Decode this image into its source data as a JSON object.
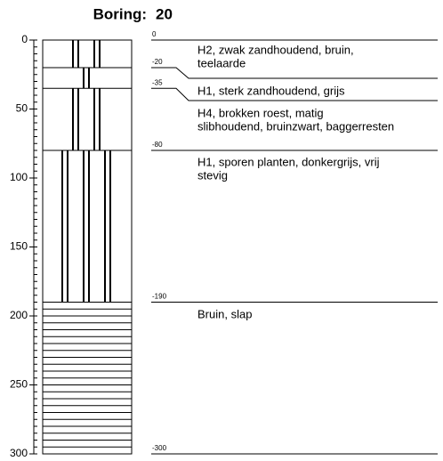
{
  "header": {
    "label": "Boring:",
    "id": "20"
  },
  "axis": {
    "ticks": [
      0,
      50,
      100,
      150,
      200,
      250,
      300
    ],
    "minor_step": 5,
    "range": [
      0,
      300
    ]
  },
  "boundaries": [
    0,
    -20,
    -35,
    -80,
    -190,
    -300
  ],
  "layers": [
    {
      "top": 0,
      "bottom": 20,
      "pattern": "vertical",
      "pairs": 2,
      "lines": [
        "H2, zwak zandhoudend, bruin,",
        "teelaarde"
      ]
    },
    {
      "top": 20,
      "bottom": 35,
      "pattern": "vertical",
      "pairs": 1,
      "lines": [
        "H1, sterk zandhoudend, grijs"
      ]
    },
    {
      "top": 35,
      "bottom": 80,
      "pattern": "vertical",
      "pairs": 2,
      "lines": [
        "H4, brokken roest, matig",
        "slibhoudend, bruinzwart, baggerresten"
      ]
    },
    {
      "top": 80,
      "bottom": 190,
      "pattern": "vertical",
      "pairs": 3,
      "lines": [
        "H1, sporen planten, donkergrijs, vrij",
        "stevig"
      ]
    },
    {
      "top": 190,
      "bottom": 300,
      "pattern": "horizontal",
      "lines": [
        "Bruin, slap"
      ]
    }
  ]
}
